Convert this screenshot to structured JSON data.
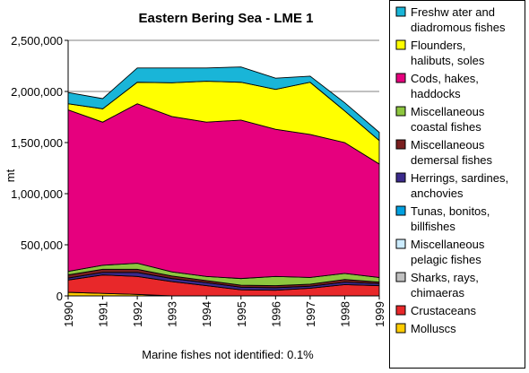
{
  "chart_data": {
    "type": "area",
    "stacked": true,
    "title": "Eastern Bering Sea - LME 1",
    "ylabel": "mt",
    "xlabel": "",
    "x": [
      1990,
      1991,
      1992,
      1993,
      1994,
      1995,
      1996,
      1997,
      1998,
      1999
    ],
    "ylim": [
      0,
      2500000
    ],
    "yticks": [
      0,
      500000,
      1000000,
      1500000,
      2000000,
      2500000
    ],
    "ytick_labels": [
      "0",
      "500,000",
      "1,000,000",
      "1,500,000",
      "2,000,000",
      "2,500,000"
    ],
    "grid": true,
    "legend_position": "right",
    "footnote": "Marine fishes not identified: 0.1%",
    "series": [
      {
        "name": "Molluscs",
        "color": "#FFCC00",
        "values": [
          35000,
          25000,
          15000,
          0,
          0,
          0,
          0,
          0,
          0,
          0
        ]
      },
      {
        "name": "Crustaceans",
        "color": "#E8282A",
        "values": [
          120000,
          180000,
          175000,
          140000,
          100000,
          60000,
          55000,
          75000,
          110000,
          100000
        ]
      },
      {
        "name": "Sharks, rays, chimaeras",
        "color": "#C0C0C0",
        "values": [
          0,
          0,
          0,
          0,
          0,
          0,
          0,
          0,
          0,
          0
        ]
      },
      {
        "name": "Miscellaneous pelagic fishes",
        "color": "#CCECFF",
        "values": [
          0,
          0,
          0,
          0,
          0,
          0,
          0,
          0,
          0,
          0
        ]
      },
      {
        "name": "Tunas, bonitos, billfishes",
        "color": "#00A0E0",
        "values": [
          0,
          0,
          0,
          0,
          0,
          0,
          0,
          0,
          0,
          0
        ]
      },
      {
        "name": "Herrings, sardines, anchovies",
        "color": "#3B2A8C",
        "values": [
          20000,
          25000,
          40000,
          30000,
          30000,
          25000,
          25000,
          20000,
          25000,
          20000
        ]
      },
      {
        "name": "Miscellaneous demersal fishes",
        "color": "#7A1F1F",
        "values": [
          30000,
          30000,
          30000,
          25000,
          20000,
          20000,
          20000,
          20000,
          25000,
          15000
        ]
      },
      {
        "name": "Miscellaneous coastal fishes",
        "color": "#8DC63F",
        "values": [
          35000,
          40000,
          60000,
          40000,
          40000,
          65000,
          90000,
          65000,
          60000,
          45000
        ]
      },
      {
        "name": "Cods, hakes, haddocks",
        "color": "#E6007E",
        "values": [
          1580000,
          1400000,
          1560000,
          1520000,
          1510000,
          1550000,
          1440000,
          1400000,
          1280000,
          1110000
        ]
      },
      {
        "name": "Flounders, halibuts, soles",
        "color": "#FFFF00",
        "values": [
          60000,
          130000,
          210000,
          330000,
          400000,
          370000,
          390000,
          510000,
          310000,
          230000
        ]
      },
      {
        "name": "Freshwater and diadromous fishes",
        "color": "#19B5D8",
        "values": [
          110000,
          100000,
          140000,
          145000,
          130000,
          150000,
          110000,
          60000,
          80000,
          80000
        ]
      }
    ]
  },
  "legend": {
    "entries": [
      {
        "lines": [
          "Freshw ater and",
          "diadromous fishes"
        ],
        "color": "#19B5D8"
      },
      {
        "lines": [
          "Flounders,",
          "halibuts, soles"
        ],
        "color": "#FFFF00"
      },
      {
        "lines": [
          "Cods, hakes,",
          "haddocks"
        ],
        "color": "#E6007E"
      },
      {
        "lines": [
          "Miscellaneous",
          "coastal fishes"
        ],
        "color": "#8DC63F"
      },
      {
        "lines": [
          "Miscellaneous",
          "demersal fishes"
        ],
        "color": "#7A1F1F"
      },
      {
        "lines": [
          "Herrings, sardines,",
          "anchovies"
        ],
        "color": "#3B2A8C"
      },
      {
        "lines": [
          "Tunas, bonitos,",
          "billfishes"
        ],
        "color": "#00A0E0"
      },
      {
        "lines": [
          "Miscellaneous",
          "pelagic fishes"
        ],
        "color": "#CCECFF"
      },
      {
        "lines": [
          "Sharks, rays,",
          "chimaeras"
        ],
        "color": "#C0C0C0"
      },
      {
        "lines": [
          "Crustaceans"
        ],
        "color": "#E8282A"
      },
      {
        "lines": [
          "Molluscs"
        ],
        "color": "#FFCC00"
      }
    ]
  }
}
